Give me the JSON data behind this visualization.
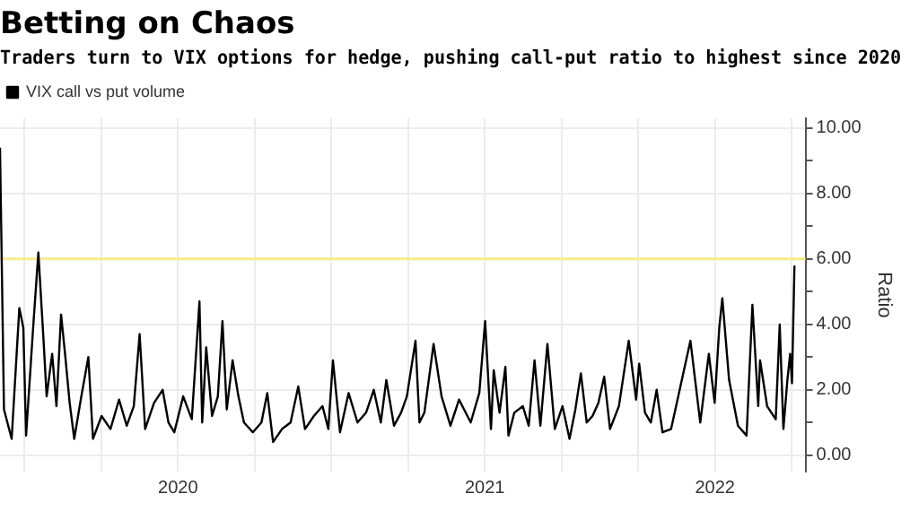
{
  "chart_data": {
    "type": "line",
    "title": "Betting on Chaos",
    "subtitle": "Traders turn to VIX options for hedge, pushing call-put ratio to highest since 2020",
    "ylabel": "Ratio",
    "series": [
      {
        "name": "VIX call vs put volume",
        "color": "#000000",
        "x": [
          2019.92,
          2019.933,
          2019.958,
          2019.983,
          2019.996,
          2020.005,
          2020.028,
          2020.045,
          2020.062,
          2020.072,
          2020.09,
          2020.104,
          2020.119,
          2020.132,
          2020.147,
          2020.162,
          2020.185,
          2020.208,
          2020.223,
          2020.251,
          2020.28,
          2020.308,
          2020.333,
          2020.356,
          2020.375,
          2020.393,
          2020.422,
          2020.45,
          2020.469,
          2020.488,
          2020.517,
          2020.545,
          2020.57,
          2020.579,
          2020.592,
          2020.611,
          2020.63,
          2020.645,
          2020.659,
          2020.678,
          2020.697,
          2020.715,
          2020.744,
          2020.772,
          2020.791,
          2020.81,
          2020.839,
          2020.867,
          2020.892,
          2020.914,
          2020.943,
          2020.971,
          2020.99,
          2021.005,
          2021.028,
          2021.056,
          2021.085,
          2021.113,
          2021.138,
          2021.161,
          2021.179,
          2021.204,
          2021.227,
          2021.246,
          2021.274,
          2021.287,
          2021.303,
          2021.333,
          2021.359,
          2021.388,
          2021.416,
          2021.454,
          2021.482,
          2021.501,
          2021.52,
          2021.529,
          2021.548,
          2021.567,
          2021.577,
          2021.596,
          2021.624,
          2021.643,
          2021.662,
          2021.681,
          2021.704,
          2021.728,
          2021.753,
          2021.776,
          2021.795,
          2021.813,
          2021.832,
          2021.851,
          2021.87,
          2021.889,
          2021.908,
          2021.937,
          2021.969,
          2021.993,
          2022.003,
          2022.022,
          2022.041,
          2022.06,
          2022.079,
          2022.107,
          2022.135,
          2022.17,
          2022.202,
          2022.23,
          2022.249,
          2022.264,
          2022.274,
          2022.296,
          2022.325,
          2022.353,
          2022.372,
          2022.391,
          2022.397,
          2022.42,
          2022.448,
          2022.461,
          2022.473,
          2022.486,
          2022.495,
          2022.501,
          2022.509
        ],
        "values": [
          9.4,
          1.4,
          0.5,
          4.5,
          3.9,
          0.6,
          3.9,
          6.2,
          3.5,
          1.8,
          3.1,
          1.5,
          4.3,
          3.1,
          1.6,
          0.5,
          1.8,
          3.0,
          0.5,
          1.2,
          0.8,
          1.7,
          0.9,
          1.5,
          3.7,
          0.8,
          1.6,
          2.0,
          1.0,
          0.7,
          1.8,
          1.1,
          4.7,
          1.0,
          3.3,
          1.2,
          1.8,
          4.1,
          1.4,
          2.9,
          1.8,
          1.0,
          0.7,
          1.0,
          1.9,
          0.4,
          0.8,
          1.0,
          2.1,
          0.8,
          1.2,
          1.5,
          0.8,
          2.9,
          0.7,
          1.9,
          1.0,
          1.3,
          2.0,
          1.0,
          2.3,
          0.9,
          1.3,
          1.8,
          3.5,
          1.0,
          1.3,
          3.4,
          1.8,
          0.9,
          1.7,
          1.0,
          1.9,
          4.1,
          0.8,
          2.6,
          1.3,
          2.7,
          0.6,
          1.3,
          1.5,
          0.9,
          2.9,
          0.9,
          3.4,
          0.8,
          1.5,
          0.5,
          1.4,
          2.5,
          1.0,
          1.2,
          1.6,
          2.4,
          0.8,
          1.5,
          3.5,
          1.7,
          2.8,
          1.3,
          1.0,
          2.0,
          0.7,
          0.8,
          2.0,
          3.5,
          1.0,
          3.1,
          1.6,
          3.9,
          4.8,
          2.3,
          0.9,
          0.6,
          4.6,
          1.5,
          2.9,
          1.5,
          1.1,
          4.0,
          0.8,
          2.3,
          3.1,
          2.2,
          5.8
        ]
      }
    ],
    "xlim": [
      2019.92,
      2022.545
    ],
    "xticks": [
      {
        "value": 2020,
        "label": null
      },
      {
        "value": 2020.25,
        "label": null
      },
      {
        "value": 2020.5,
        "label": "2020"
      },
      {
        "value": 2020.75,
        "label": null
      },
      {
        "value": 2021,
        "label": null
      },
      {
        "value": 2021.25,
        "label": null
      },
      {
        "value": 2021.5,
        "label": "2021"
      },
      {
        "value": 2021.75,
        "label": null
      },
      {
        "value": 2022,
        "label": null
      },
      {
        "value": 2022.25,
        "label": "2022"
      },
      {
        "value": 2022.5,
        "label": null
      }
    ],
    "ylim": [
      -0.5,
      10.3
    ],
    "yticks": [
      {
        "value": 0,
        "label": "0.00"
      },
      {
        "value": 1,
        "label": null
      },
      {
        "value": 2,
        "label": "2.00"
      },
      {
        "value": 3,
        "label": null
      },
      {
        "value": 4,
        "label": "4.00"
      },
      {
        "value": 5,
        "label": null
      },
      {
        "value": 6,
        "label": "6.00"
      },
      {
        "value": 7,
        "label": null
      },
      {
        "value": 8,
        "label": "8.00"
      },
      {
        "value": 9,
        "label": null
      },
      {
        "value": 10,
        "label": "10.00"
      }
    ],
    "ref_lines": [
      {
        "axis": "y",
        "value": 6,
        "color": "#f7ec8a"
      }
    ],
    "grid": true,
    "legend": "top left",
    "marker": "none",
    "line_style": "solid"
  }
}
